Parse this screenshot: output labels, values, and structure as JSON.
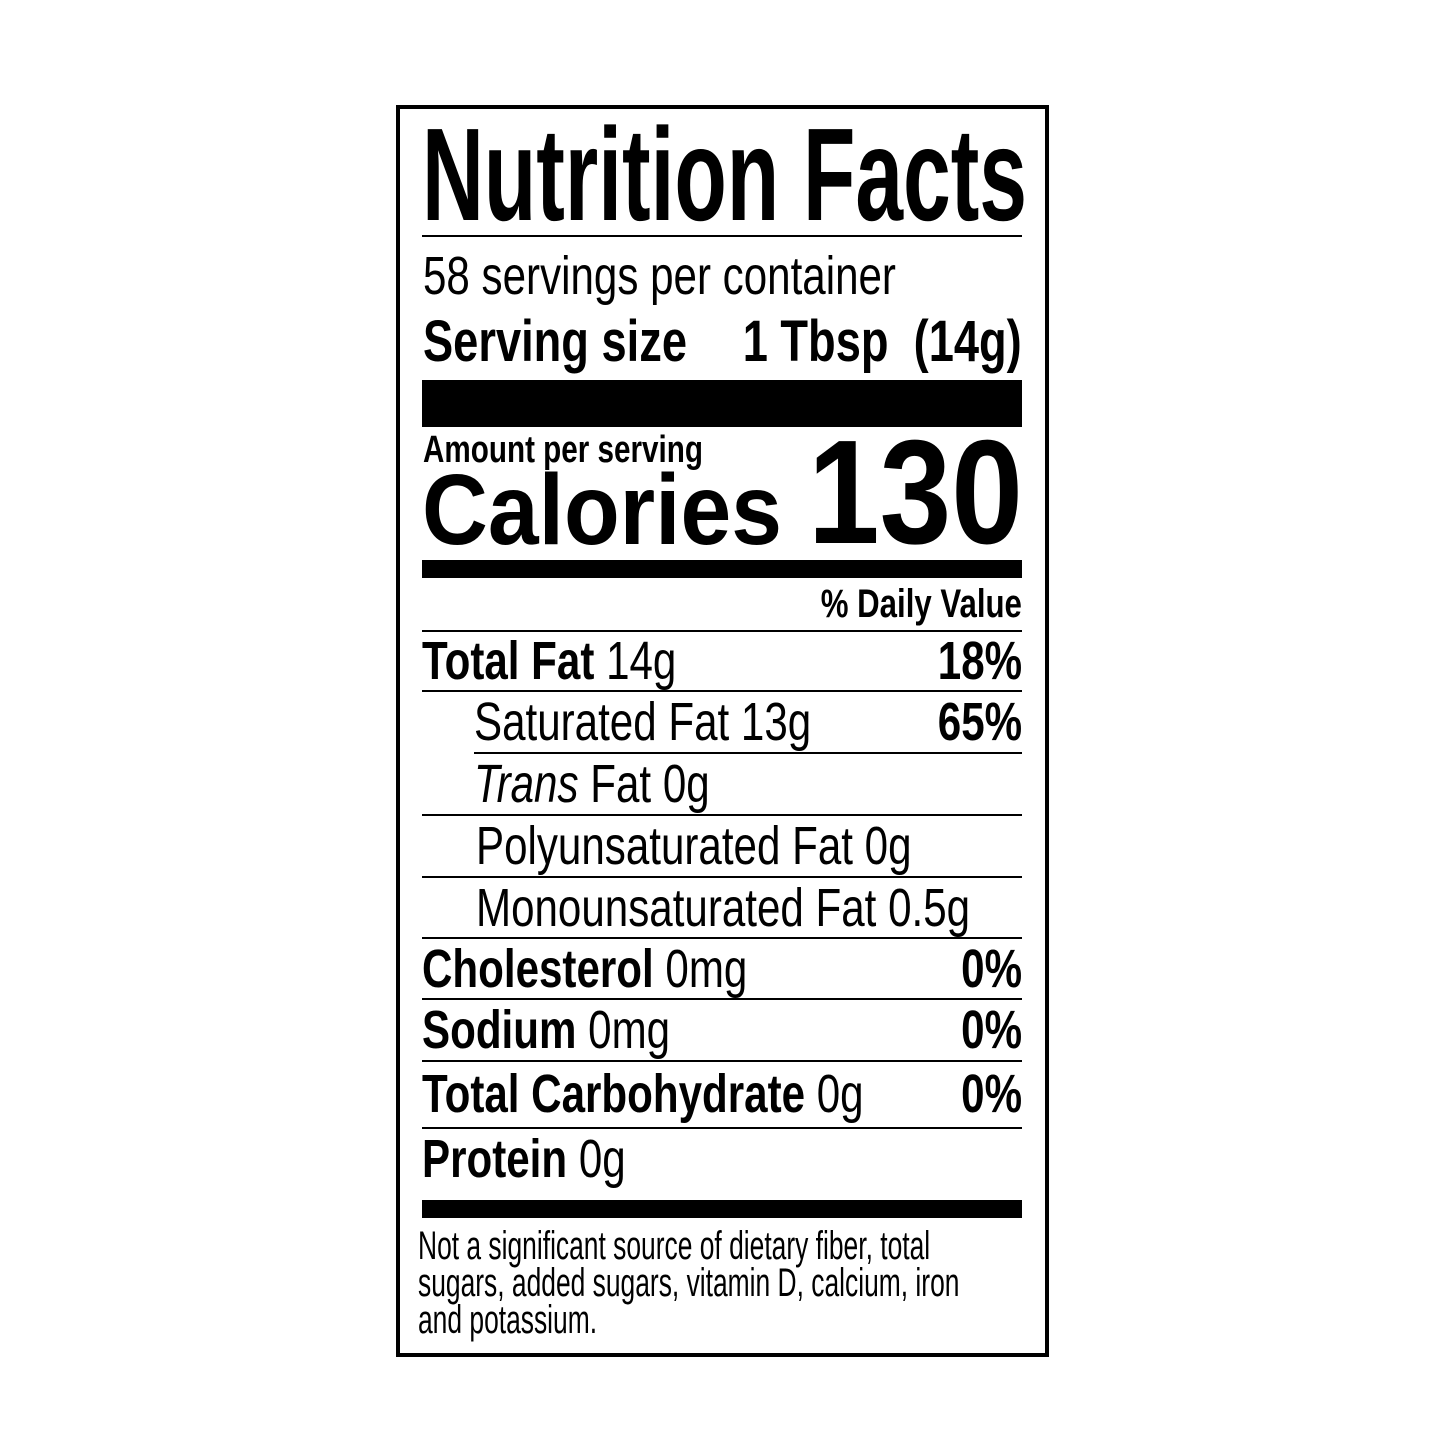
{
  "title": "Nutrition Facts",
  "servings_per_container": "58 servings per container",
  "serving_size": {
    "label": "Serving size",
    "value": "1 Tbsp  (14g)"
  },
  "amount_per_serving": "Amount per serving",
  "calories": {
    "label": "Calories",
    "value": "130"
  },
  "daily_value_header": "% Daily Value",
  "rows": [
    {
      "label": "Total Fat",
      "amount": "14g",
      "dv": "18%"
    },
    {
      "label": "Saturated Fat",
      "amount": "13g",
      "dv": "65%"
    },
    {
      "label_italic": "Trans",
      "label": "Fat",
      "amount": "0g"
    },
    {
      "label": "Polyunsaturated Fat",
      "amount": "0g"
    },
    {
      "label": "Monounsaturated Fat",
      "amount": "0.5g"
    },
    {
      "label": "Cholesterol",
      "amount": "0mg",
      "dv": "0%"
    },
    {
      "label": "Sodium",
      "amount": "0mg",
      "dv": "0%"
    },
    {
      "label": "Total Carbohydrate",
      "amount": "0g",
      "dv": "0%"
    },
    {
      "label": "Protein",
      "amount": "0g"
    }
  ],
  "footnote": [
    "Not a significant source of dietary fiber, total",
    "sugars, added sugars, vitamin D, calcium, iron",
    "and potassium."
  ]
}
